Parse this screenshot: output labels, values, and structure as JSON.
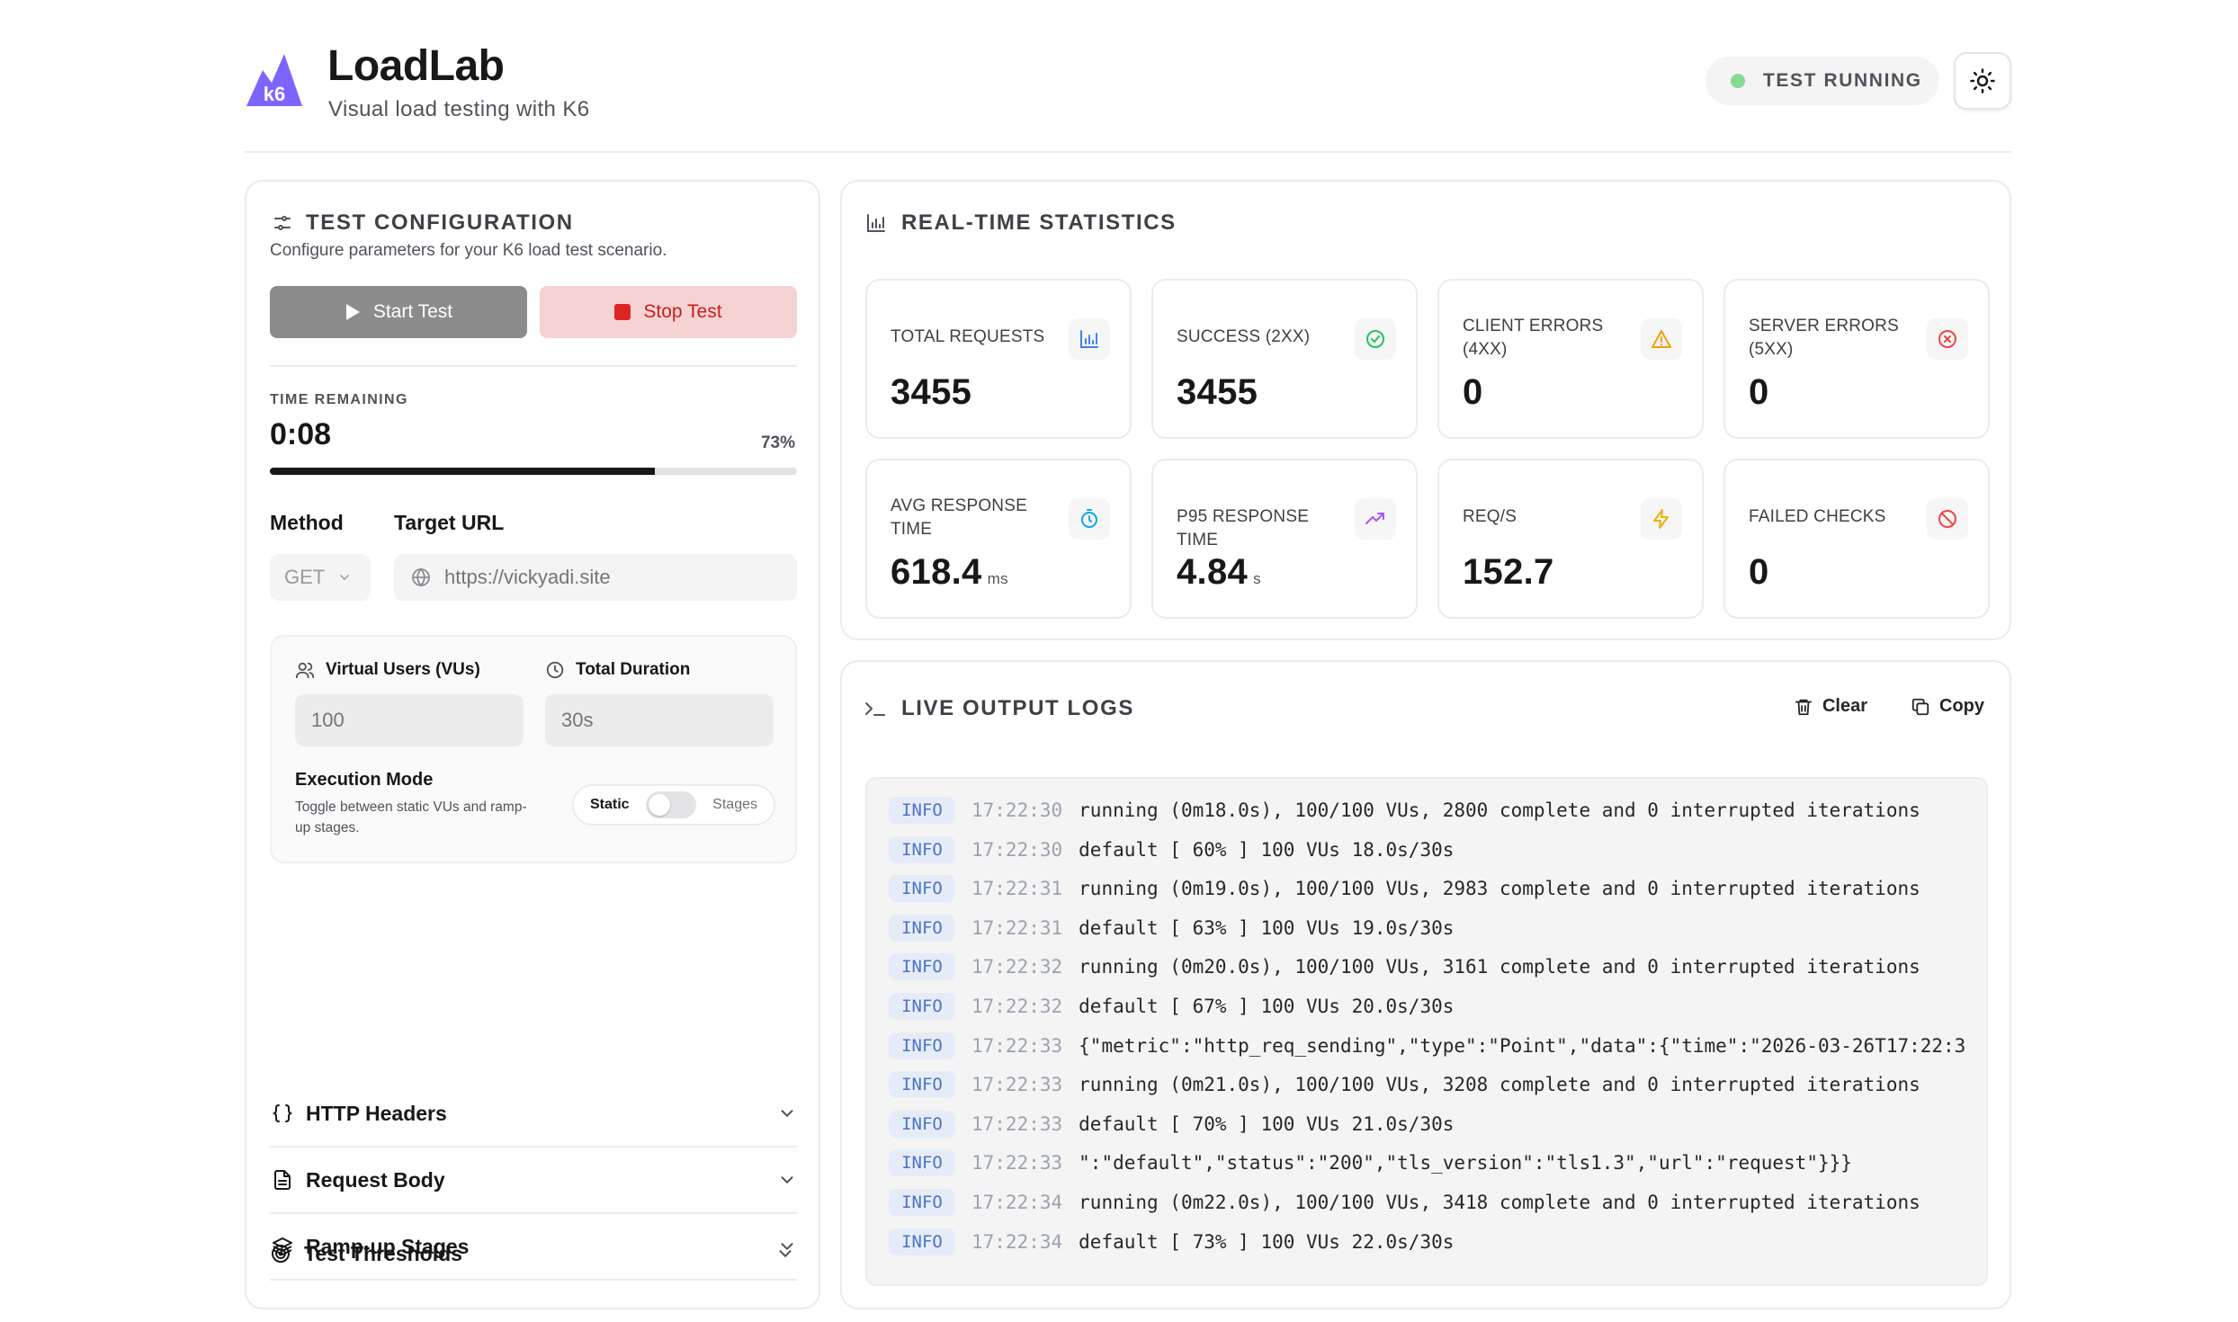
{
  "header": {
    "title": "LoadLab",
    "subtitle": "Visual load testing with K6",
    "logo_text": "k6",
    "status": "TEST RUNNING",
    "accent_color": "#7d64ff"
  },
  "config": {
    "title": "TEST CONFIGURATION",
    "description": "Configure parameters for your K6 load test scenario.",
    "start_label": "Start Test",
    "stop_label": "Stop Test",
    "time_label": "TIME REMAINING",
    "time_value": "0:08",
    "progress_pct_text": "73%",
    "progress_fraction": 0.73,
    "method_label": "Method",
    "method_value": "GET",
    "url_label": "Target URL",
    "url_placeholder": "https://vickyadi.site",
    "vus_label": "Virtual Users (VUs)",
    "vus_value": "100",
    "duration_label": "Total Duration",
    "duration_value": "30s",
    "exec_title": "Execution Mode",
    "exec_desc": "Toggle between static VUs and ramp-up stages.",
    "mode_static": "Static",
    "mode_stages": "Stages",
    "accordions": [
      {
        "label": "HTTP Headers",
        "icon": "braces-icon"
      },
      {
        "label": "Request Body",
        "icon": "file-text-icon"
      },
      {
        "label": "Ramp-up Stages",
        "icon": "layers-icon"
      },
      {
        "label": "Test Thresholds",
        "icon": "target-icon"
      }
    ]
  },
  "stats": {
    "title": "REAL-TIME STATISTICS",
    "items": [
      {
        "label": "TOTAL REQUESTS",
        "value": "3455",
        "unit": "",
        "icon": "bar-chart-icon",
        "color": "#3b82f6"
      },
      {
        "label": "SUCCESS (2XX)",
        "value": "3455",
        "unit": "",
        "icon": "check-circle-icon",
        "color": "#22c55e"
      },
      {
        "label": "CLIENT ERRORS (4XX)",
        "value": "0",
        "unit": "",
        "icon": "warning-triangle-icon",
        "color": "#f59e0b"
      },
      {
        "label": "SERVER ERRORS (5XX)",
        "value": "0",
        "unit": "",
        "icon": "x-circle-icon",
        "color": "#ef4444"
      },
      {
        "label": "AVG RESPONSE TIME",
        "value": "618.4",
        "unit": "ms",
        "icon": "timer-icon",
        "color": "#0ea5e9"
      },
      {
        "label": "P95 RESPONSE TIME",
        "value": "4.84",
        "unit": "s",
        "icon": "trending-up-icon",
        "color": "#a855f7"
      },
      {
        "label": "REQ/S",
        "value": "152.7",
        "unit": "",
        "icon": "zap-icon",
        "color": "#eab308"
      },
      {
        "label": "FAILED CHECKS",
        "value": "0",
        "unit": "",
        "icon": "ban-icon",
        "color": "#ef4444"
      }
    ]
  },
  "logs": {
    "title": "LIVE OUTPUT LOGS",
    "clear_label": "Clear",
    "copy_label": "Copy",
    "lines": [
      {
        "level": "INFO",
        "time": "17:22:30",
        "message": "running (0m18.0s), 100/100 VUs, 2800 complete and 0 interrupted iterations"
      },
      {
        "level": "INFO",
        "time": "17:22:30",
        "message": "default [ 60% ] 100 VUs 18.0s/30s"
      },
      {
        "level": "INFO",
        "time": "17:22:31",
        "message": "running (0m19.0s), 100/100 VUs, 2983 complete and 0 interrupted iterations"
      },
      {
        "level": "INFO",
        "time": "17:22:31",
        "message": "default [ 63% ] 100 VUs 19.0s/30s"
      },
      {
        "level": "INFO",
        "time": "17:22:32",
        "message": "running (0m20.0s), 100/100 VUs, 3161 complete and 0 interrupted iterations"
      },
      {
        "level": "INFO",
        "time": "17:22:32",
        "message": "default [ 67% ] 100 VUs 20.0s/30s"
      },
      {
        "level": "INFO",
        "time": "17:22:33",
        "message": "{\"metric\":\"http_req_sending\",\"type\":\"Point\",\"data\":{\"time\":\"2026-03-26T17:22:3"
      },
      {
        "level": "INFO",
        "time": "17:22:33",
        "message": "running (0m21.0s), 100/100 VUs, 3208 complete and 0 interrupted iterations"
      },
      {
        "level": "INFO",
        "time": "17:22:33",
        "message": "default [ 70% ] 100 VUs 21.0s/30s"
      },
      {
        "level": "INFO",
        "time": "17:22:33",
        "message": "\":\"default\",\"status\":\"200\",\"tls_version\":\"tls1.3\",\"url\":\"request\"}}}"
      },
      {
        "level": "INFO",
        "time": "17:22:34",
        "message": "running (0m22.0s), 100/100 VUs, 3418 complete and 0 interrupted iterations"
      },
      {
        "level": "INFO",
        "time": "17:22:34",
        "message": "default [ 73% ] 100 VUs 22.0s/30s"
      }
    ]
  }
}
